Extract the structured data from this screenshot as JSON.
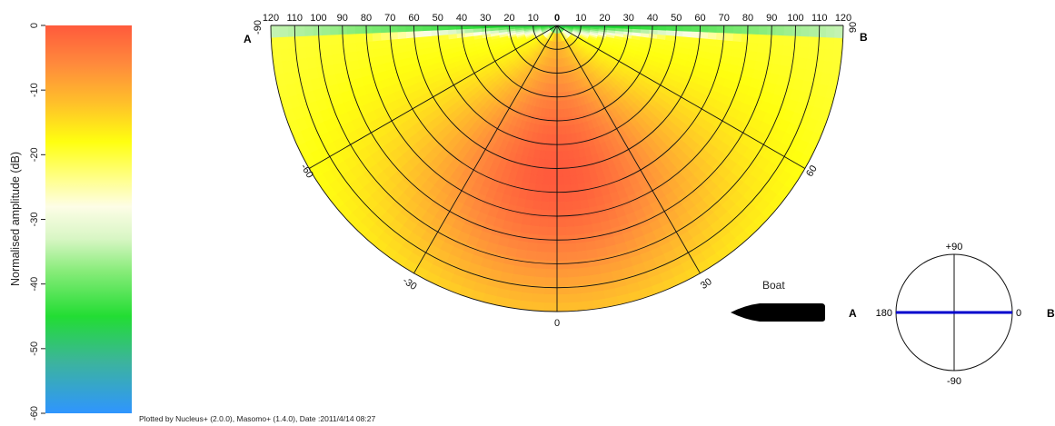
{
  "chart_data": {
    "type": "heatmap",
    "subtype": "polar beam pattern (half-disc)",
    "colorbar": {
      "label": "Normalised amplitude (dB)",
      "range": [
        -60,
        0
      ],
      "ticks": [
        "0",
        "-10",
        "-20",
        "-30",
        "-40",
        "-50",
        "-60"
      ],
      "stops": [
        {
          "db": 0,
          "color": "#ff5a3c"
        },
        {
          "db": -6,
          "color": "#ff8a3c"
        },
        {
          "db": -12,
          "color": "#ffc02a"
        },
        {
          "db": -18,
          "color": "#ffff10"
        },
        {
          "db": -24,
          "color": "#ffff90"
        },
        {
          "db": -28,
          "color": "#fdfde6"
        },
        {
          "db": -33,
          "color": "#d8f6c4"
        },
        {
          "db": -38,
          "color": "#88ec7a"
        },
        {
          "db": -45,
          "color": "#22dd33"
        },
        {
          "db": -52,
          "color": "#3cb49c"
        },
        {
          "db": -60,
          "color": "#2f95ff"
        }
      ]
    },
    "top_scale": {
      "left_labels": [
        "120",
        "110",
        "100",
        "90",
        "80",
        "70",
        "60",
        "50",
        "40",
        "30",
        "20",
        "10"
      ],
      "center_label": "0",
      "right_labels": [
        "10",
        "20",
        "30",
        "40",
        "50",
        "60",
        "70",
        "80",
        "90",
        "100",
        "110",
        "120"
      ]
    },
    "angle_labels": {
      "left_end": "-90",
      "right_end": "90",
      "left_60": "-60",
      "right_60": "60",
      "left_30": "-30",
      "right_30": "30",
      "bottom": "0"
    },
    "end_letters": {
      "left": "A",
      "right": "B"
    },
    "rings": 12,
    "pattern": {
      "peak_db": 0,
      "edge_db": -20,
      "top_edge_db": -48,
      "main_lobe_center_deg": 0
    }
  },
  "boat": {
    "label": "Boat"
  },
  "orientation_inset": {
    "top": "+90",
    "bottom": "-90",
    "left": "180",
    "right": "0",
    "left_letter": "A",
    "right_letter": "B",
    "line_color": "#0000cc"
  },
  "footer": "Plotted by Nucleus+ (2.0.0), Masomo+ (1.4.0), Date :2011/4/14 08:27"
}
